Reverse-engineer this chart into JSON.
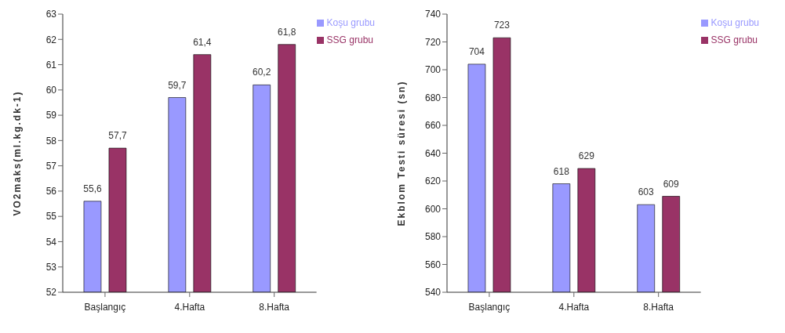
{
  "chart_data": [
    {
      "type": "bar",
      "ylabel": "VO2maks(ml.kg.dk-1)",
      "categories": [
        "Başlangıç",
        "4.Hafta",
        "8.Hafta"
      ],
      "series": [
        {
          "name": "Koşu grubu",
          "color": "#9999ff",
          "values": [
            55.6,
            59.7,
            60.2
          ],
          "value_labels": [
            "55,6",
            "59,7",
            "60,2"
          ]
        },
        {
          "name": "SSG grubu",
          "color": "#993366",
          "values": [
            57.7,
            61.4,
            61.8
          ],
          "value_labels": [
            "57,7",
            "61,4",
            "61,8"
          ]
        }
      ],
      "ylim": [
        52,
        63
      ],
      "yticks": [
        52,
        53,
        54,
        55,
        56,
        57,
        58,
        59,
        60,
        61,
        62,
        63
      ],
      "grid": false,
      "legend": "top right"
    },
    {
      "type": "bar",
      "ylabel": "Ekblom Testi süresi (sn)",
      "categories": [
        "Başlangıç",
        "4.Hafta",
        "8.Hafta"
      ],
      "series": [
        {
          "name": "Koşu grubu",
          "color": "#9999ff",
          "values": [
            704,
            618,
            603
          ]
        },
        {
          "name": "SSG grubu",
          "color": "#993366",
          "values": [
            723,
            629,
            609
          ]
        }
      ],
      "ylim": [
        540,
        740
      ],
      "yticks": [
        540,
        560,
        580,
        600,
        620,
        640,
        660,
        680,
        700,
        720,
        740
      ],
      "grid": false,
      "legend": "top right",
      "data_labels": true
    }
  ]
}
